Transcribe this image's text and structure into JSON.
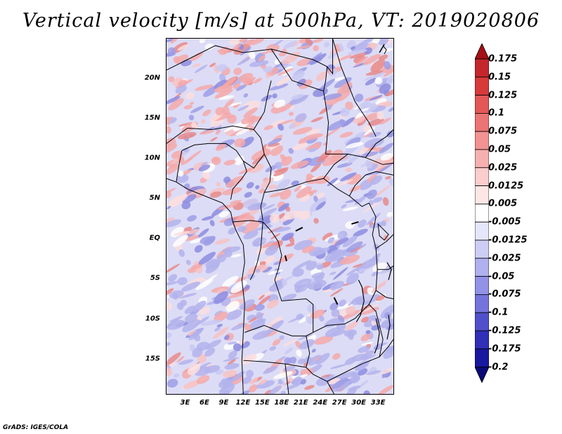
{
  "title": "Vertical velocity [m/s] at 500hPa, VT: 2019020806",
  "footer": "GrADS: IGES/COLA",
  "map": {
    "lon_range": [
      0,
      35.5
    ],
    "lat_range": [
      -19.5,
      25
    ],
    "lat_ticks": [
      {
        "label": "20N",
        "value": 20
      },
      {
        "label": "15N",
        "value": 15
      },
      {
        "label": "10N",
        "value": 10
      },
      {
        "label": "5N",
        "value": 5
      },
      {
        "label": "EQ",
        "value": 0
      },
      {
        "label": "5S",
        "value": -5
      },
      {
        "label": "10S",
        "value": -10
      },
      {
        "label": "15S",
        "value": -15
      }
    ],
    "lon_ticks": [
      {
        "label": "3E",
        "value": 3
      },
      {
        "label": "6E",
        "value": 6
      },
      {
        "label": "9E",
        "value": 9
      },
      {
        "label": "12E",
        "value": 12
      },
      {
        "label": "15E",
        "value": 15
      },
      {
        "label": "18E",
        "value": 18
      },
      {
        "label": "21E",
        "value": 21
      },
      {
        "label": "24E",
        "value": 24
      },
      {
        "label": "27E",
        "value": 27
      },
      {
        "label": "30E",
        "value": 30
      },
      {
        "label": "33E",
        "value": 33
      }
    ]
  },
  "colorbar": {
    "levels": [
      "0.175",
      "0.15",
      "0.125",
      "0.1",
      "0.075",
      "0.05",
      "0.025",
      "0.0125",
      "0.005",
      "-0.005",
      "-0.0125",
      "-0.025",
      "-0.05",
      "-0.075",
      "-0.1",
      "-0.125",
      "-0.175",
      "-0.2"
    ],
    "colors": [
      "#a50f15",
      "#c5262c",
      "#d83a3a",
      "#e45757",
      "#ec7474",
      "#f29292",
      "#f7b0b0",
      "#fbcdcd",
      "#fde6e6",
      "#ffffff",
      "#e6e6fb",
      "#cdcdf5",
      "#b0b0ee",
      "#9292e6",
      "#7474dc",
      "#5050cc",
      "#3030b8",
      "#1818a0",
      "#0a0a78"
    ]
  }
}
